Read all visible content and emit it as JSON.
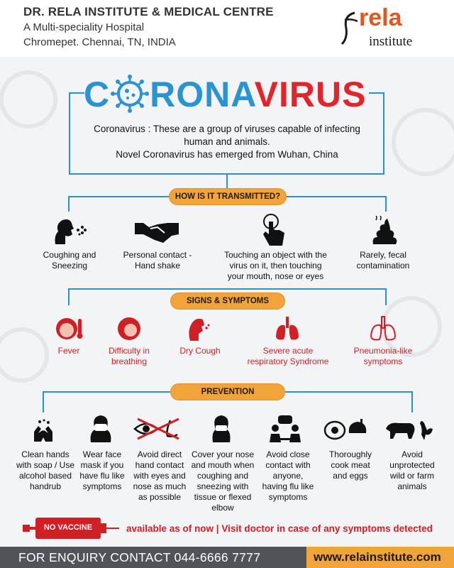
{
  "header": {
    "org_name": "DR. RELA INSTITUTE & MEDICAL CENTRE",
    "subtitle": "A Multi-speciality Hospital",
    "location": "Chromepet. Chennai, TN, INDIA",
    "logo_main": "rela",
    "logo_sub": "institute"
  },
  "title": {
    "part1": "C",
    "part2": "RONA",
    "part3": "VIRUS"
  },
  "intro": {
    "line1": "Coronavirus : These are a group of viruses capable of infecting human and animals.",
    "line2": "Novel Coronavirus has emerged from Wuhan, China"
  },
  "transmission": {
    "heading": "HOW IS IT TRANSMITTED?",
    "items": [
      {
        "label": "Coughing and Sneezing",
        "icon": "sneezing-person-icon"
      },
      {
        "label": "Personal contact - Hand shake",
        "icon": "handshake-icon"
      },
      {
        "label": "Touching an object with the virus on it, then touching your mouth, nose or eyes",
        "icon": "touch-finger-icon"
      },
      {
        "label": "Rarely, fecal contamination",
        "icon": "feces-icon"
      }
    ]
  },
  "symptoms": {
    "heading": "SIGNS & SYMPTOMS",
    "items": [
      {
        "label": "Fever",
        "icon": "fever-face-icon"
      },
      {
        "label": "Difficulty in breathing",
        "icon": "breathing-difficulty-icon"
      },
      {
        "label": "Dry Cough",
        "icon": "dry-cough-icon"
      },
      {
        "label": "Severe acute respiratory Syndrome",
        "icon": "lungs-icon"
      },
      {
        "label": "Pneumonia-like symptoms",
        "icon": "pneumonia-lungs-icon"
      }
    ]
  },
  "prevention": {
    "heading": "PREVENTION",
    "items": [
      {
        "label": "Clean hands with soap / Use alcohol based handrub",
        "icon": "washing-hands-icon"
      },
      {
        "label": "Wear face mask if you have flu like symptoms",
        "icon": "face-mask-icon"
      },
      {
        "label": "Avoid direct hand contact with eyes and nose as much as possible",
        "icon": "no-touch-face-icon"
      },
      {
        "label": "Cover your nose and mouth when coughing and sneezing with tissue or flexed elbow",
        "icon": "cover-cough-icon"
      },
      {
        "label": "Avoid close contact with anyone, having flu like symptoms",
        "icon": "people-distance-icon"
      },
      {
        "label": "Thoroughly cook meat and eggs",
        "icon": "cooked-food-icon"
      },
      {
        "label": "Avoid unprotected wild or farm animals",
        "icon": "farm-animals-icon"
      }
    ]
  },
  "vaccine": {
    "badge": "NO VACCINE",
    "note": "available as of now  |  Visit doctor in case of any symptoms detected"
  },
  "footer": {
    "enquiry": "FOR ENQUIRY CONTACT 044-6666 7777",
    "website": "www.relainstitute.com"
  },
  "colors": {
    "blue": "#2693cf",
    "red": "#d11f26",
    "orange": "#f2a43a",
    "footer": "#505358"
  }
}
